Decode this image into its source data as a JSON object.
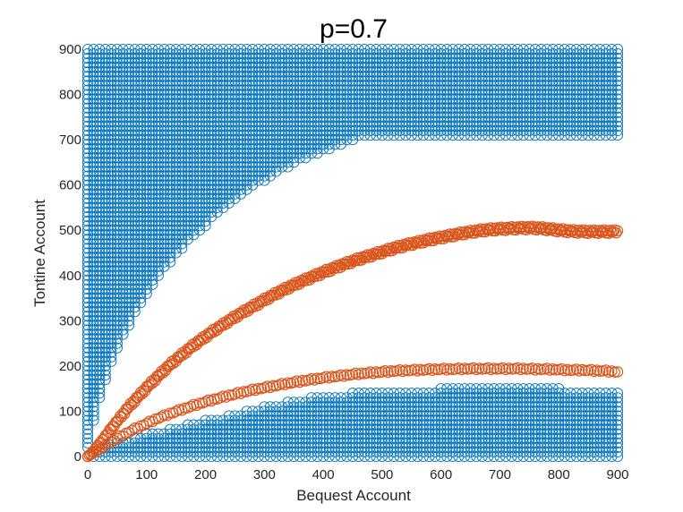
{
  "chart_data": {
    "type": "scatter",
    "title": "p=0.7",
    "xlabel": "Bequest Account",
    "ylabel": "Tontine Account",
    "xlim": [
      0,
      900
    ],
    "ylim": [
      0,
      900
    ],
    "xticks": [
      "0",
      "100",
      "200",
      "300",
      "400",
      "500",
      "600",
      "700",
      "800",
      "900"
    ],
    "yticks": [
      "0",
      "100",
      "200",
      "300",
      "400",
      "500",
      "600",
      "700",
      "800",
      "900"
    ],
    "grid": false,
    "legend": "none",
    "marker": "open-circle",
    "colors": {
      "region": "#0072BD",
      "boundary": "#D95319"
    },
    "series": [
      {
        "role": "upper-region",
        "color": "#0072BD",
        "step": 10,
        "y_top": 900,
        "lower_edge": [
          [
            0,
            15
          ],
          [
            20,
            130
          ],
          [
            50,
            240
          ],
          [
            100,
            360
          ],
          [
            150,
            445
          ],
          [
            200,
            510
          ],
          [
            250,
            565
          ],
          [
            300,
            610
          ],
          [
            350,
            645
          ],
          [
            400,
            675
          ],
          [
            450,
            700
          ],
          [
            500,
            705
          ],
          [
            550,
            705
          ],
          [
            600,
            705
          ],
          [
            650,
            705
          ],
          [
            700,
            705
          ],
          [
            750,
            705
          ],
          [
            800,
            705
          ],
          [
            850,
            705
          ],
          [
            900,
            705
          ]
        ]
      },
      {
        "role": "lower-region",
        "color": "#0072BD",
        "step": 10,
        "y_bottom": 0,
        "upper_edge": [
          [
            0,
            0
          ],
          [
            20,
            15
          ],
          [
            50,
            30
          ],
          [
            100,
            50
          ],
          [
            150,
            65
          ],
          [
            200,
            80
          ],
          [
            250,
            95
          ],
          [
            300,
            110
          ],
          [
            350,
            125
          ],
          [
            400,
            135
          ],
          [
            450,
            140
          ],
          [
            500,
            145
          ],
          [
            550,
            145
          ],
          [
            600,
            150
          ],
          [
            650,
            150
          ],
          [
            700,
            150
          ],
          [
            750,
            150
          ],
          [
            800,
            150
          ],
          [
            850,
            145
          ],
          [
            900,
            140
          ]
        ]
      },
      {
        "role": "upper-boundary",
        "color": "#D95319",
        "points": [
          [
            0,
            0
          ],
          [
            10,
            12
          ],
          [
            20,
            28
          ],
          [
            30,
            45
          ],
          [
            40,
            62
          ],
          [
            50,
            78
          ],
          [
            60,
            94
          ],
          [
            70,
            110
          ],
          [
            80,
            124
          ],
          [
            90,
            138
          ],
          [
            100,
            152
          ],
          [
            120,
            178
          ],
          [
            140,
            203
          ],
          [
            160,
            225
          ],
          [
            180,
            246
          ],
          [
            200,
            265
          ],
          [
            220,
            283
          ],
          [
            240,
            300
          ],
          [
            260,
            316
          ],
          [
            280,
            331
          ],
          [
            300,
            346
          ],
          [
            320,
            360
          ],
          [
            340,
            373
          ],
          [
            360,
            385
          ],
          [
            380,
            396
          ],
          [
            400,
            407
          ],
          [
            420,
            417
          ],
          [
            440,
            427
          ],
          [
            460,
            436
          ],
          [
            480,
            444
          ],
          [
            500,
            452
          ],
          [
            520,
            460
          ],
          [
            540,
            467
          ],
          [
            560,
            473
          ],
          [
            580,
            479
          ],
          [
            600,
            484
          ],
          [
            620,
            489
          ],
          [
            640,
            494
          ],
          [
            660,
            498
          ],
          [
            680,
            501
          ],
          [
            700,
            503
          ],
          [
            720,
            504
          ],
          [
            740,
            505
          ],
          [
            760,
            505
          ],
          [
            780,
            503
          ],
          [
            800,
            500
          ],
          [
            820,
            498
          ],
          [
            840,
            497
          ],
          [
            860,
            497
          ],
          [
            880,
            497
          ],
          [
            900,
            497
          ]
        ]
      },
      {
        "role": "lower-boundary",
        "color": "#D95319",
        "points": [
          [
            0,
            0
          ],
          [
            10,
            8
          ],
          [
            20,
            16
          ],
          [
            30,
            24
          ],
          [
            40,
            32
          ],
          [
            50,
            40
          ],
          [
            60,
            47
          ],
          [
            70,
            54
          ],
          [
            80,
            61
          ],
          [
            90,
            67
          ],
          [
            100,
            73
          ],
          [
            120,
            85
          ],
          [
            140,
            95
          ],
          [
            160,
            104
          ],
          [
            180,
            113
          ],
          [
            200,
            121
          ],
          [
            220,
            128
          ],
          [
            240,
            135
          ],
          [
            260,
            141
          ],
          [
            280,
            147
          ],
          [
            300,
            152
          ],
          [
            320,
            157
          ],
          [
            340,
            162
          ],
          [
            360,
            166
          ],
          [
            380,
            170
          ],
          [
            400,
            174
          ],
          [
            420,
            177
          ],
          [
            440,
            180
          ],
          [
            460,
            183
          ],
          [
            480,
            185
          ],
          [
            500,
            187
          ],
          [
            520,
            189
          ],
          [
            540,
            190
          ],
          [
            560,
            191
          ],
          [
            580,
            192
          ],
          [
            600,
            193
          ],
          [
            620,
            193
          ],
          [
            640,
            194
          ],
          [
            660,
            194
          ],
          [
            680,
            194
          ],
          [
            700,
            194
          ],
          [
            720,
            194
          ],
          [
            740,
            194
          ],
          [
            760,
            193
          ],
          [
            780,
            193
          ],
          [
            800,
            192
          ],
          [
            820,
            191
          ],
          [
            840,
            191
          ],
          [
            860,
            190
          ],
          [
            880,
            189
          ],
          [
            900,
            187
          ]
        ]
      }
    ]
  }
}
